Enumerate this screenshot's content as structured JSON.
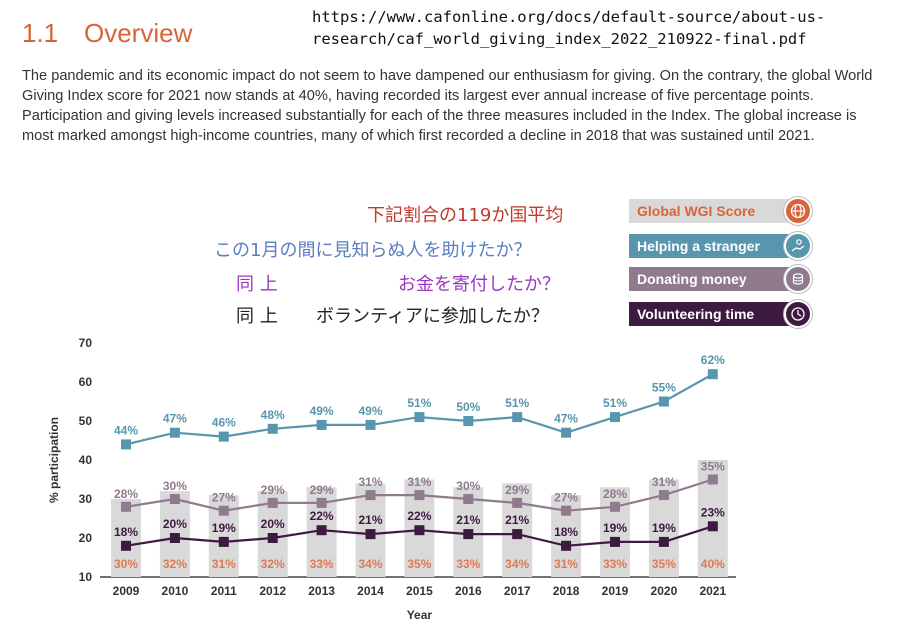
{
  "header": {
    "section_number": "1.1",
    "section_title": "Overview"
  },
  "source_url": "https://www.cafonline.org/docs/default-source/about-us-\nresearch/caf_world_giving_index_2022_210922-final.pdf",
  "intro_text": "The pandemic and its economic impact do not seem to have dampened our enthusiasm for giving. On the contrary, the global World Giving Index score for 2021 now stands at 40%, having recorded its largest ever annual increase of five percentage points. Participation and giving levels increased substantially for each of the three measures included in the Index. The global increase is most marked amongst high-income countries, many of which first recorded a decline in 2018 that was sustained until 2021.",
  "annotations": {
    "wgi": "下記割合の119か国平均",
    "stranger": "この1月の間に見知らぬ人を助けたか？",
    "donating_prefix": "同 上",
    "donating": "お金を寄付したか？",
    "volunteering_prefix": "同 上",
    "volunteering": "ボランティアに参加したか？"
  },
  "legend": [
    {
      "label": "Global WGI Score",
      "color": "#d9d9d9",
      "text_color": "#d9643a",
      "icon": "globe-icon",
      "icon_color": "#d9643a"
    },
    {
      "label": "Helping a stranger",
      "color": "#5796ad",
      "text_color": "#ffffff",
      "icon": "helping-hand-icon",
      "icon_color": "#5796ad"
    },
    {
      "label": "Donating money",
      "color": "#8f7a8e",
      "text_color": "#ffffff",
      "icon": "coins-icon",
      "icon_color": "#8f7a8e"
    },
    {
      "label": "Volunteering time",
      "color": "#3d1a3f",
      "text_color": "#ffffff",
      "icon": "clock-icon",
      "icon_color": "#3d1a3f"
    }
  ],
  "chart_data": {
    "type": "bar",
    "categories": [
      "2009",
      "2010",
      "2011",
      "2012",
      "2013",
      "2014",
      "2015",
      "2016",
      "2017",
      "2018",
      "2019",
      "2020",
      "2021"
    ],
    "xlabel": "Year",
    "ylabel": "% participation",
    "ylim": [
      10,
      70
    ],
    "yticks": [
      10,
      20,
      30,
      40,
      50,
      60,
      70
    ],
    "series": [
      {
        "name": "Global WGI Score",
        "kind": "bar",
        "color": "#d9d9d9",
        "label_color": "#e07a52",
        "values": [
          30,
          32,
          31,
          32,
          33,
          34,
          35,
          33,
          34,
          31,
          33,
          35,
          40
        ]
      },
      {
        "name": "Helping a stranger",
        "kind": "line",
        "color": "#5796ad",
        "values": [
          44,
          47,
          46,
          48,
          49,
          49,
          51,
          50,
          51,
          47,
          51,
          55,
          62
        ]
      },
      {
        "name": "Donating money",
        "kind": "line",
        "color": "#8f7a8e",
        "values": [
          28,
          30,
          27,
          29,
          29,
          31,
          31,
          30,
          29,
          27,
          28,
          31,
          35
        ]
      },
      {
        "name": "Volunteering time",
        "kind": "line",
        "color": "#3d1a3f",
        "values": [
          18,
          20,
          19,
          20,
          22,
          21,
          22,
          21,
          21,
          18,
          19,
          19,
          23
        ]
      }
    ]
  }
}
